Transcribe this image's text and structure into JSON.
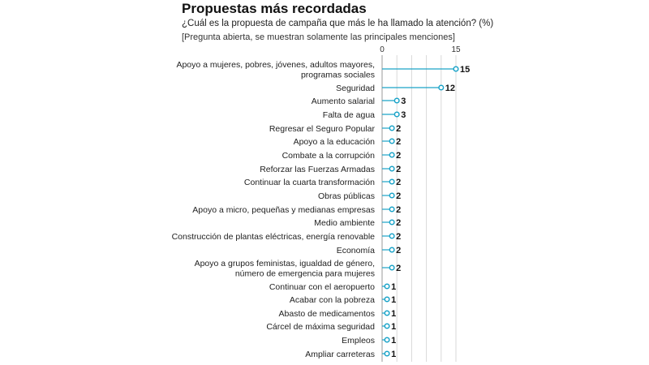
{
  "header": {
    "title": "Propuestas más recordadas",
    "subtitle": "¿Cuál es la propuesta de campaña que más le ha llamado la atención? (%)",
    "note": "[Pregunta abierta, se muestran solamente las principales menciones]"
  },
  "colors": {
    "accent": "#1aa3c8",
    "grid": "#d9d9d9",
    "axis": "#999999"
  },
  "chart_data": {
    "type": "bar",
    "style": "lollipop, horizontal",
    "xlim": [
      0,
      15
    ],
    "ticks": [
      0,
      15
    ],
    "grid": true,
    "categories": [
      [
        "Apoyo a mujeres, pobres, jóvenes, adultos mayores,",
        "programas sociales"
      ],
      [
        "Seguridad"
      ],
      [
        "Aumento salarial"
      ],
      [
        "Falta de agua"
      ],
      [
        "Regresar el Seguro Popular"
      ],
      [
        "Apoyo a la educación"
      ],
      [
        "Combate a la corrupción"
      ],
      [
        "Reforzar las Fuerzas Armadas"
      ],
      [
        "Continuar la cuarta transformación"
      ],
      [
        "Obras públicas"
      ],
      [
        "Apoyo a micro, pequeñas y medianas empresas"
      ],
      [
        "Medio ambiente"
      ],
      [
        "Construcción de plantas eléctricas, energía renovable"
      ],
      [
        "Economía"
      ],
      [
        "Apoyo a grupos feministas, igualdad de género,",
        "número de emergencia para mujeres"
      ],
      [
        "Continuar con el aeropuerto"
      ],
      [
        "Acabar con la pobreza"
      ],
      [
        "Abasto de medicamentos"
      ],
      [
        "Cárcel de máxima seguridad"
      ],
      [
        "Empleos"
      ],
      [
        "Ampliar carreteras"
      ]
    ],
    "values": [
      15,
      12,
      3,
      3,
      2,
      2,
      2,
      2,
      2,
      2,
      2,
      2,
      2,
      2,
      2,
      1,
      1,
      1,
      1,
      1,
      1
    ]
  }
}
